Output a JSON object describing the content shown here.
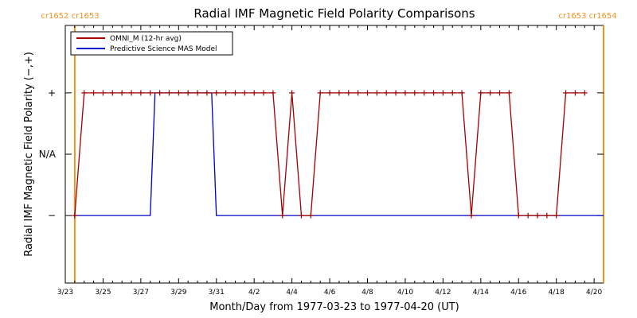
{
  "chart_data": {
    "type": "line",
    "title": "Radial IMF Magnetic Field Polarity Comparisons",
    "xlabel": "Month/Day from 1977-03-23 to 1977-04-20 (UT)",
    "ylabel": "Radial IMF Magnetic Field Polarity (−,+)",
    "x_range": [
      "1977-03-23",
      "1977-04-20T12:00"
    ],
    "x_ticks": [
      {
        "date": "1977-03-23",
        "label": "3/23"
      },
      {
        "date": "1977-03-25",
        "label": "3/25"
      },
      {
        "date": "1977-03-27",
        "label": "3/27"
      },
      {
        "date": "1977-03-29",
        "label": "3/29"
      },
      {
        "date": "1977-03-31",
        "label": "3/31"
      },
      {
        "date": "1977-04-02",
        "label": "4/2"
      },
      {
        "date": "1977-04-04",
        "label": "4/4"
      },
      {
        "date": "1977-04-06",
        "label": "4/6"
      },
      {
        "date": "1977-04-08",
        "label": "4/8"
      },
      {
        "date": "1977-04-10",
        "label": "4/10"
      },
      {
        "date": "1977-04-12",
        "label": "4/12"
      },
      {
        "date": "1977-04-14",
        "label": "4/14"
      },
      {
        "date": "1977-04-16",
        "label": "4/16"
      },
      {
        "date": "1977-04-18",
        "label": "4/18"
      },
      {
        "date": "1977-04-20",
        "label": "4/20"
      }
    ],
    "y_categories": [
      {
        "value": 1,
        "label": "+"
      },
      {
        "value": 0,
        "label": "N/A"
      },
      {
        "value": -1,
        "label": "−"
      }
    ],
    "y_range": [
      -2.1,
      2.1
    ],
    "legend_position": "top-left",
    "grid": false,
    "carrington_markers": [
      {
        "date": "1977-03-23T12:00",
        "label": "cr1652 cr1653",
        "color": "#f0921e"
      },
      {
        "date": "1977-04-20T12:00",
        "label": "cr1653 cr1654",
        "color": "#f0921e"
      }
    ],
    "series": [
      {
        "name": "OMNI_M (12-hr avg)",
        "color": "#a00000",
        "marker": "plus",
        "x": [
          "1977-03-23T12:00",
          "1977-03-24",
          "1977-03-24T12:00",
          "1977-03-25",
          "1977-03-25T12:00",
          "1977-03-26",
          "1977-03-26T12:00",
          "1977-03-27",
          "1977-03-27T12:00",
          "1977-03-28",
          "1977-03-28T12:00",
          "1977-03-29",
          "1977-03-29T12:00",
          "1977-03-30",
          "1977-03-30T12:00",
          "1977-03-31",
          "1977-03-31T12:00",
          "1977-04-01",
          "1977-04-01T12:00",
          "1977-04-02",
          "1977-04-02T12:00",
          "1977-04-03",
          "1977-04-03T12:00",
          "1977-04-04",
          "1977-04-04T12:00",
          "1977-04-05",
          "1977-04-05T12:00",
          "1977-04-06",
          "1977-04-06T12:00",
          "1977-04-07",
          "1977-04-07T12:00",
          "1977-04-08",
          "1977-04-08T12:00",
          "1977-04-09",
          "1977-04-09T12:00",
          "1977-04-10",
          "1977-04-10T12:00",
          "1977-04-11",
          "1977-04-11T12:00",
          "1977-04-12",
          "1977-04-12T12:00",
          "1977-04-13",
          "1977-04-13T12:00",
          "1977-04-14",
          "1977-04-14T12:00",
          "1977-04-15",
          "1977-04-15T12:00",
          "1977-04-16",
          "1977-04-16T12:00",
          "1977-04-17",
          "1977-04-17T12:00",
          "1977-04-18",
          "1977-04-18T12:00",
          "1977-04-19",
          "1977-04-19T12:00",
          "1977-04-20",
          "1977-04-20T12:00"
        ],
        "y": [
          -1,
          1,
          1,
          1,
          1,
          1,
          1,
          1,
          1,
          1,
          1,
          1,
          1,
          1,
          1,
          1,
          1,
          1,
          1,
          1,
          1,
          1,
          -1,
          1,
          -1,
          -1,
          1,
          1,
          1,
          1,
          1,
          1,
          1,
          1,
          1,
          1,
          1,
          1,
          1,
          1,
          1,
          1,
          -1,
          1,
          1,
          1,
          1,
          -1,
          -1,
          -1,
          -1,
          -1,
          1,
          1,
          1,
          null,
          null
        ]
      },
      {
        "name": "Predictive Science MAS Model",
        "color": "#0000cc",
        "marker": "none",
        "x": [
          "1977-03-23T12:00",
          "1977-03-27T12:00",
          "1977-03-27T18:00",
          "1977-03-30T18:00",
          "1977-03-31",
          "1977-04-20T12:00"
        ],
        "y": [
          -1,
          -1,
          1,
          1,
          -1,
          -1
        ]
      }
    ]
  }
}
